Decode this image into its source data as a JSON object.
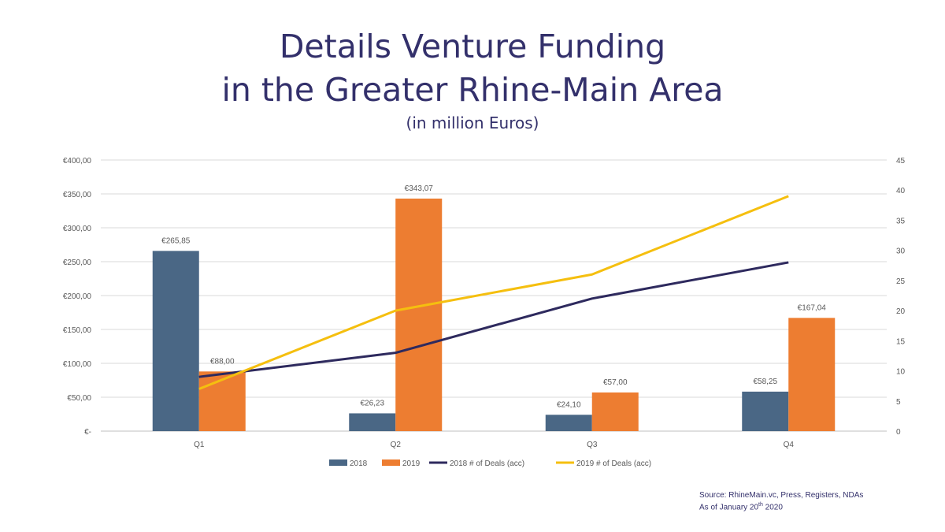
{
  "slide": {
    "title_line1": "Details Venture Funding",
    "title_line2": "in the Greater Rhine-Main Area",
    "subtitle": "(in million Euros)",
    "source_line1": "Source: RhineMain.vc, Press, Registers, NDAs",
    "as_of_prefix": "As of January 20",
    "as_of_sup": "th",
    "as_of_suffix": " 2020"
  },
  "chart_data": {
    "type": "bar",
    "categories": [
      "Q1",
      "Q2",
      "Q3",
      "Q4"
    ],
    "series": [
      {
        "name": "2018",
        "type": "bar",
        "axis": "left",
        "color": "#4a6785",
        "values": [
          265.85,
          26.23,
          24.1,
          58.25
        ],
        "labels": [
          "€265,85",
          "€26,23",
          "€24,10",
          "€58,25"
        ]
      },
      {
        "name": "2019",
        "type": "bar",
        "axis": "left",
        "color": "#ed7d31",
        "values": [
          88.0,
          343.07,
          57.0,
          167.04
        ],
        "labels": [
          "€88,00",
          "€343,07",
          "€57,00",
          "€167,04"
        ]
      },
      {
        "name": "2018 # of Deals (acc)",
        "type": "line",
        "axis": "right",
        "color": "#2e2a5e",
        "values": [
          9,
          13,
          22,
          28
        ]
      },
      {
        "name": "2019 # of Deals (acc)",
        "type": "line",
        "axis": "right",
        "color": "#f5bf0f",
        "values": [
          7,
          20,
          26,
          39
        ]
      }
    ],
    "y_left": {
      "min": 0,
      "max": 400,
      "step": 50,
      "ticks": [
        "€-",
        "€50,00",
        "€100,00",
        "€150,00",
        "€200,00",
        "€250,00",
        "€300,00",
        "€350,00",
        "€400,00"
      ]
    },
    "y_right": {
      "min": 0,
      "max": 45,
      "step": 5,
      "ticks": [
        "0",
        "5",
        "10",
        "15",
        "20",
        "25",
        "30",
        "35",
        "40",
        "45"
      ]
    },
    "grid": true,
    "legend_position": "bottom"
  }
}
